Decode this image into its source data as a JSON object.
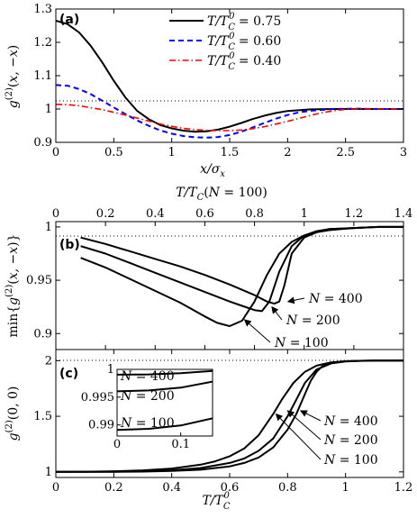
{
  "chart_data": [
    {
      "panel_label": "(a)",
      "type": "line",
      "xlabel": "x/σ_x",
      "ylabel": "g^(2)(x, −x)",
      "xlim": [
        0,
        3
      ],
      "ylim": [
        0.9,
        1.3
      ],
      "xticks": [
        "0",
        "0.5",
        "1",
        "1.5",
        "2",
        "2.5",
        "3"
      ],
      "yticks": [
        "0.9",
        "1",
        "1.1",
        "1.2",
        "1.3"
      ],
      "reference_line": 1.0,
      "legend_position": "top-right",
      "series": [
        {
          "name": "T/T_C^0 = 0.75",
          "color": "#000000",
          "style": "solid",
          "x": [
            0,
            0.1,
            0.2,
            0.3,
            0.4,
            0.5,
            0.6,
            0.7,
            0.8,
            0.9,
            1.0,
            1.1,
            1.2,
            1.3,
            1.4,
            1.5,
            1.6,
            1.7,
            1.8,
            1.9,
            2.0,
            2.2,
            2.4,
            2.6,
            2.8,
            3.0
          ],
          "y": [
            1.265,
            1.255,
            1.23,
            1.19,
            1.14,
            1.085,
            1.035,
            0.995,
            0.97,
            0.952,
            0.942,
            0.935,
            0.932,
            0.933,
            0.938,
            0.947,
            0.958,
            0.97,
            0.98,
            0.988,
            0.994,
            0.999,
            1.0,
            1.0,
            1.0,
            1.0
          ]
        },
        {
          "name": "T/T_C^0 = 0.60",
          "color": "#0000ff",
          "style": "dashed",
          "x": [
            0,
            0.1,
            0.2,
            0.3,
            0.4,
            0.5,
            0.6,
            0.7,
            0.8,
            0.9,
            1.0,
            1.1,
            1.2,
            1.3,
            1.4,
            1.5,
            1.6,
            1.7,
            1.8,
            1.9,
            2.0,
            2.1,
            2.2,
            2.4,
            2.6,
            2.8,
            3.0
          ],
          "y": [
            1.072,
            1.07,
            1.06,
            1.045,
            1.025,
            1.005,
            0.985,
            0.966,
            0.95,
            0.936,
            0.926,
            0.919,
            0.915,
            0.914,
            0.916,
            0.922,
            0.932,
            0.945,
            0.958,
            0.971,
            0.982,
            0.99,
            0.995,
            1.0,
            1.001,
            1.0,
            1.0
          ]
        },
        {
          "name": "T/T_C^0 = 0.40",
          "color": "#ff0000",
          "style": "dashdot",
          "x": [
            0,
            0.1,
            0.2,
            0.3,
            0.4,
            0.5,
            0.6,
            0.7,
            0.8,
            0.9,
            1.0,
            1.1,
            1.2,
            1.3,
            1.4,
            1.5,
            1.6,
            1.7,
            1.8,
            1.9,
            2.0,
            2.1,
            2.2,
            2.3,
            2.4,
            2.5,
            2.6,
            2.8,
            3.0
          ],
          "y": [
            1.014,
            1.013,
            1.01,
            1.004,
            0.998,
            0.99,
            0.982,
            0.973,
            0.964,
            0.955,
            0.948,
            0.942,
            0.938,
            0.936,
            0.935,
            0.935,
            0.937,
            0.941,
            0.947,
            0.955,
            0.963,
            0.972,
            0.981,
            0.989,
            0.995,
            0.999,
            1.0,
            1.0,
            1.0
          ]
        }
      ]
    },
    {
      "panel_label": "(b)",
      "type": "line",
      "xlabel_top": "T/T_C(N = 100)",
      "ylabel": "min{g^(2)(x, −x)}",
      "xlim": [
        0,
        1.4
      ],
      "ylim": [
        0.885,
        1.005
      ],
      "xticks": [
        "0",
        "0.2",
        "0.4",
        "0.6",
        "0.8",
        "1",
        "1.2",
        "1.4"
      ],
      "yticks": [
        "0.9",
        "0.95",
        "1"
      ],
      "reference_line": 1.0,
      "series": [
        {
          "name": "N = 400",
          "color": "#000000",
          "x": [
            0.1,
            0.2,
            0.3,
            0.4,
            0.5,
            0.6,
            0.7,
            0.8,
            0.85,
            0.88,
            0.9,
            0.92,
            0.95,
            1.0,
            1.05,
            1.1,
            1.2,
            1.3,
            1.4
          ],
          "y": [
            0.99,
            0.984,
            0.977,
            0.97,
            0.963,
            0.955,
            0.946,
            0.936,
            0.93,
            0.928,
            0.93,
            0.945,
            0.975,
            0.99,
            0.995,
            0.998,
            0.999,
            1.0,
            1.0
          ]
        },
        {
          "name": "N = 200",
          "color": "#000000",
          "x": [
            0.1,
            0.2,
            0.3,
            0.4,
            0.5,
            0.6,
            0.7,
            0.75,
            0.8,
            0.83,
            0.86,
            0.9,
            0.95,
            1.0,
            1.05,
            1.1,
            1.2,
            1.3,
            1.4
          ],
          "y": [
            0.982,
            0.975,
            0.966,
            0.957,
            0.948,
            0.939,
            0.93,
            0.926,
            0.922,
            0.921,
            0.93,
            0.958,
            0.982,
            0.992,
            0.996,
            0.998,
            0.999,
            1.0,
            1.0
          ]
        },
        {
          "name": "N = 100",
          "color": "#000000",
          "x": [
            0.1,
            0.2,
            0.3,
            0.4,
            0.5,
            0.6,
            0.65,
            0.7,
            0.75,
            0.8,
            0.85,
            0.9,
            0.95,
            1.0,
            1.05,
            1.1,
            1.2,
            1.3,
            1.4
          ],
          "y": [
            0.971,
            0.962,
            0.951,
            0.94,
            0.929,
            0.916,
            0.91,
            0.907,
            0.912,
            0.93,
            0.955,
            0.975,
            0.986,
            0.992,
            0.995,
            0.997,
            0.999,
            1.0,
            1.0
          ]
        }
      ]
    },
    {
      "panel_label": "(c)",
      "type": "line",
      "xlabel": "T/T_C^0",
      "ylabel": "g^(2)(0, 0)",
      "xlim": [
        0,
        1.2
      ],
      "ylim": [
        0.95,
        2.1
      ],
      "xticks": [
        "0",
        "0.2",
        "0.4",
        "0.6",
        "0.8",
        "1",
        "1.2"
      ],
      "yticks": [
        "1",
        "1.5",
        "2"
      ],
      "reference_line": 2.0,
      "series": [
        {
          "name": "N = 400",
          "color": "#000000",
          "x": [
            0,
            0.1,
            0.2,
            0.3,
            0.4,
            0.5,
            0.6,
            0.65,
            0.7,
            0.75,
            0.8,
            0.83,
            0.86,
            0.88,
            0.9,
            0.92,
            0.95,
            1.0,
            1.05,
            1.1,
            1.2
          ],
          "y": [
            1.0,
            1.0,
            1.001,
            1.003,
            1.008,
            1.02,
            1.05,
            1.08,
            1.13,
            1.22,
            1.38,
            1.52,
            1.7,
            1.82,
            1.9,
            1.95,
            1.98,
            1.995,
            1.999,
            2.0,
            2.0
          ]
        },
        {
          "name": "N = 200",
          "color": "#000000",
          "x": [
            0,
            0.1,
            0.2,
            0.3,
            0.4,
            0.5,
            0.6,
            0.65,
            0.7,
            0.75,
            0.8,
            0.83,
            0.86,
            0.9,
            0.95,
            1.0,
            1.05,
            1.1,
            1.2
          ],
          "y": [
            1.0,
            1.001,
            1.002,
            1.006,
            1.015,
            1.035,
            1.08,
            1.12,
            1.19,
            1.3,
            1.5,
            1.65,
            1.8,
            1.92,
            1.975,
            1.993,
            1.998,
            2.0,
            2.0
          ]
        },
        {
          "name": "N = 100",
          "color": "#000000",
          "x": [
            0,
            0.1,
            0.2,
            0.3,
            0.4,
            0.5,
            0.55,
            0.6,
            0.65,
            0.7,
            0.75,
            0.78,
            0.82,
            0.86,
            0.9,
            0.95,
            1.0,
            1.05,
            1.1,
            1.2
          ],
          "y": [
            1.0,
            1.002,
            1.006,
            1.014,
            1.03,
            1.065,
            1.095,
            1.14,
            1.21,
            1.33,
            1.52,
            1.65,
            1.8,
            1.9,
            1.955,
            1.985,
            1.995,
            1.999,
            2.0,
            2.0
          ]
        }
      ],
      "inset": {
        "type": "line",
        "xlim": [
          0,
          0.15
        ],
        "ylim": [
          0.988,
          1.0
        ],
        "xticks": [
          "0",
          "0.1"
        ],
        "yticks": [
          "0.99",
          "0.995",
          "1"
        ],
        "series": [
          {
            "name": "N = 400",
            "x": [
              0,
              0.05,
              0.1,
              0.15
            ],
            "y": [
              0.99905,
              0.9991,
              0.9993,
              0.9997
            ]
          },
          {
            "name": "N = 200",
            "x": [
              0,
              0.05,
              0.1,
              0.15
            ],
            "y": [
              0.99605,
              0.9962,
              0.9967,
              0.9978
            ]
          },
          {
            "name": "N = 100",
            "x": [
              0,
              0.05,
              0.1,
              0.15
            ],
            "y": [
              0.9891,
              0.9893,
              0.9899,
              0.9912
            ]
          }
        ]
      }
    }
  ]
}
